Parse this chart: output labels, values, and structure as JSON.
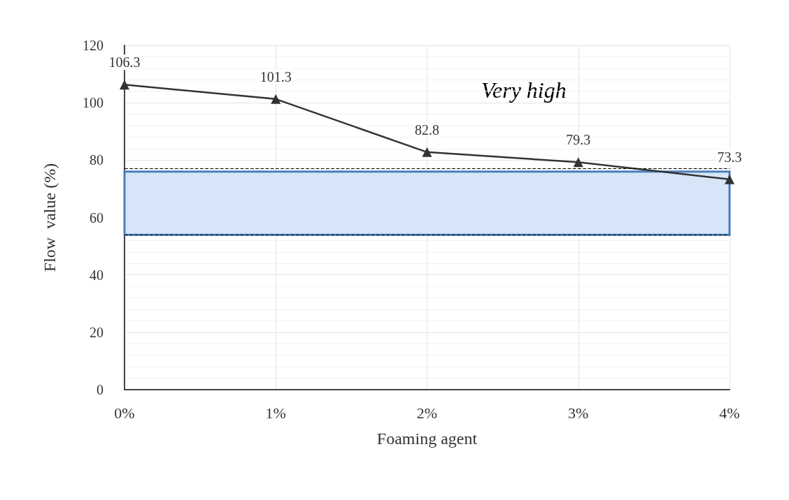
{
  "chart_data": {
    "type": "line",
    "xlabel": "Foaming agent",
    "ylabel": "Flow  value (%)",
    "categories": [
      "0%",
      "1%",
      "2%",
      "3%",
      "4%"
    ],
    "series": [
      {
        "color": "#333333",
        "values": [
          106.3,
          101.3,
          82.8,
          79.3,
          73.3
        ]
      }
    ],
    "ylim": [
      0,
      120
    ],
    "yticks": [
      0,
      20,
      40,
      60,
      80,
      100,
      120
    ],
    "grid": true,
    "marker": "triangle",
    "line_style": "solid",
    "data_labels": true,
    "ref_lines": [
      {
        "axis": "y",
        "value": 77,
        "line_style": "dashed",
        "color": "#000000"
      },
      {
        "axis": "y",
        "value": 54,
        "line_style": "dashed",
        "color": "#000000"
      }
    ],
    "bands": [
      {
        "axis": "y",
        "from": 54,
        "to": 76,
        "color": "#d6e6f8"
      }
    ],
    "annotations": [
      "Very high"
    ]
  }
}
